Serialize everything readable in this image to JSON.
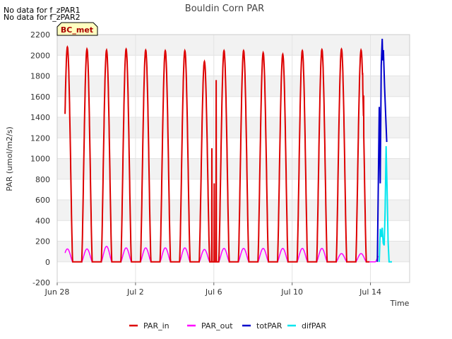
{
  "messages": [
    "No data for f_zPAR1",
    "No data for f_zPAR2"
  ],
  "site_badge": "BC_met",
  "chart_data": {
    "type": "line",
    "title": "Bouldin Corn PAR",
    "xlabel": "Time",
    "ylabel": "PAR (umol/m2/s)",
    "ylim": [
      -200,
      2200
    ],
    "yticks": [
      -200,
      0,
      200,
      400,
      600,
      800,
      1000,
      1200,
      1400,
      1600,
      1800,
      2000,
      2200
    ],
    "xlim": [
      0,
      18
    ],
    "xticks": [
      {
        "value": 0,
        "label": "Jun 28"
      },
      {
        "value": 4,
        "label": "Jul 2"
      },
      {
        "value": 8,
        "label": "Jul 6"
      },
      {
        "value": 12,
        "label": "Jul 10"
      },
      {
        "value": 16,
        "label": "Jul 14"
      }
    ],
    "x_unit": "days since Jun 28",
    "series": [
      {
        "name": "PAR_in",
        "color": "#dd0000",
        "daily_peaks": [
          2080,
          2060,
          2050,
          2060,
          2050,
          2045,
          2045,
          1940,
          2045,
          2045,
          2025,
          2010,
          2045,
          2055,
          2060,
          2050
        ],
        "anomalies": [
          {
            "x": 7.9,
            "value": 1100
          },
          {
            "x": 8.02,
            "value": 760
          },
          {
            "x": 8.12,
            "value": 1760
          },
          {
            "x": 15.6,
            "value": 1820
          },
          {
            "x": 15.65,
            "value": 1610
          }
        ]
      },
      {
        "name": "PAR_out",
        "color": "#ff00ff",
        "daily_peaks": [
          125,
          125,
          150,
          135,
          135,
          135,
          135,
          120,
          130,
          130,
          130,
          130,
          130,
          130,
          80,
          80,
          80
        ]
      },
      {
        "name": "totPAR",
        "color": "#0000cc",
        "points": [
          [
            16.35,
            0
          ],
          [
            16.45,
            1500
          ],
          [
            16.5,
            760
          ],
          [
            16.55,
            1900
          ],
          [
            16.6,
            2160
          ],
          [
            16.63,
            1950
          ],
          [
            16.66,
            2050
          ],
          [
            16.72,
            1700
          ],
          [
            16.78,
            1400
          ],
          [
            16.83,
            1160
          ]
        ]
      },
      {
        "name": "difPAR",
        "color": "#00e5ee",
        "points": [
          [
            16.45,
            0
          ],
          [
            16.5,
            320
          ],
          [
            16.55,
            240
          ],
          [
            16.6,
            330
          ],
          [
            16.65,
            180
          ],
          [
            16.7,
            160
          ],
          [
            16.75,
            500
          ],
          [
            16.8,
            1120
          ],
          [
            16.85,
            700
          ],
          [
            16.9,
            200
          ],
          [
            16.95,
            0
          ],
          [
            17.1,
            0
          ]
        ]
      }
    ],
    "legend_position": "bottom",
    "grid": true,
    "bands": "alternating gray"
  }
}
